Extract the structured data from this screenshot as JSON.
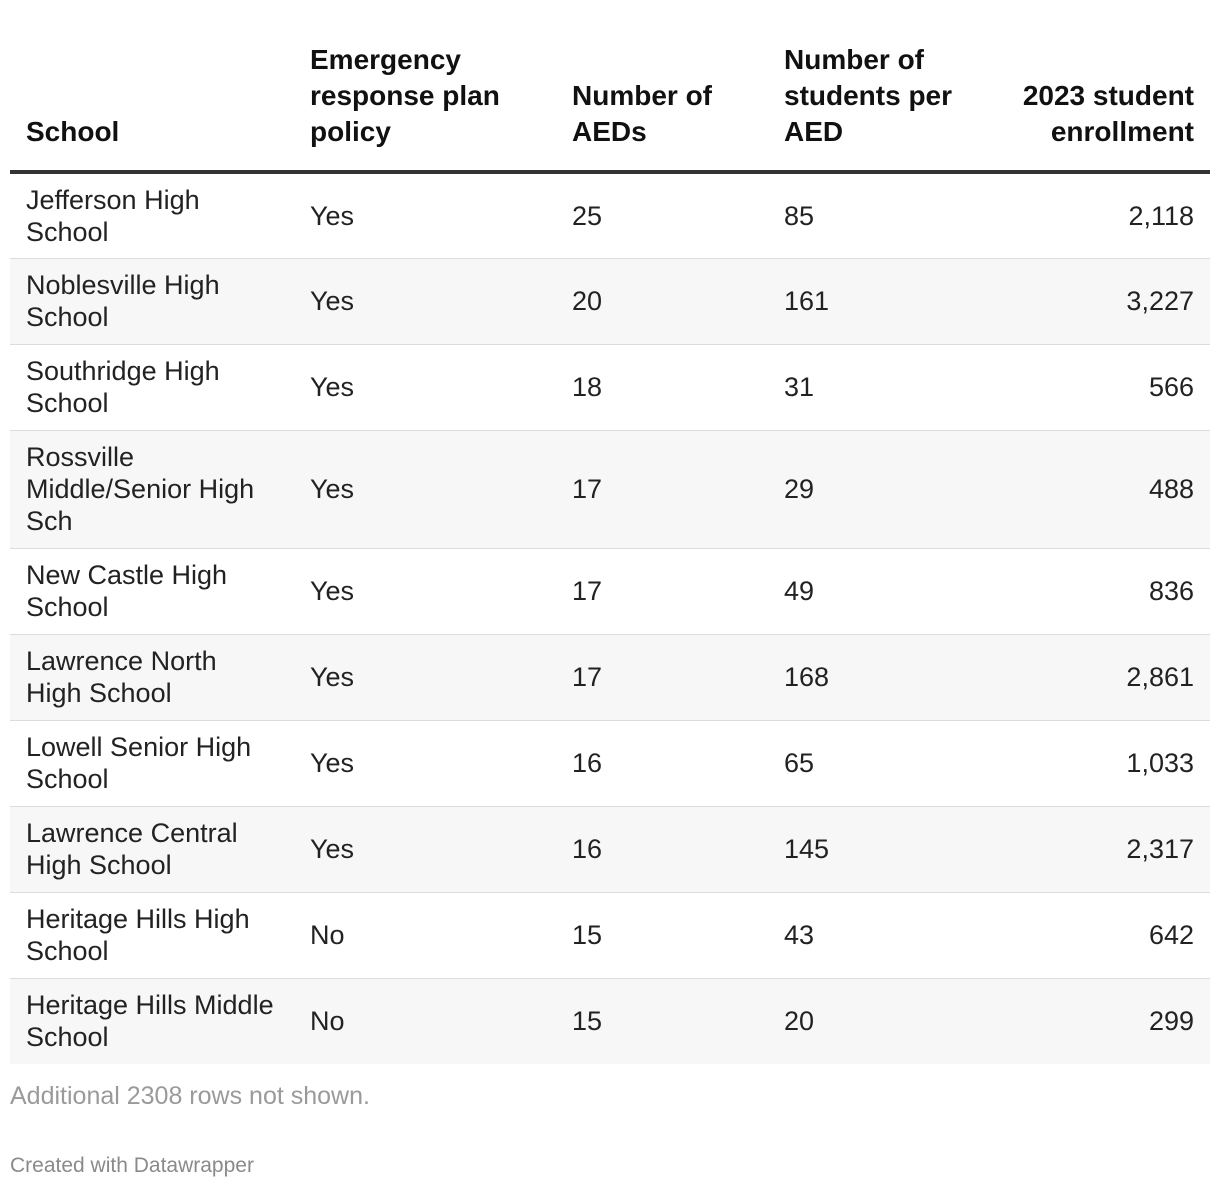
{
  "chart_data": {
    "type": "table",
    "columns": [
      "School",
      "Emergency response plan policy",
      "Number of AEDs",
      "Number of students per AED",
      "2023 student enrollment"
    ],
    "rows": [
      [
        "Jefferson High School",
        "Yes",
        "25",
        "85",
        "2,118"
      ],
      [
        "Noblesville High School",
        "Yes",
        "20",
        "161",
        "3,227"
      ],
      [
        "Southridge High School",
        "Yes",
        "18",
        "31",
        "566"
      ],
      [
        "Rossville Middle/Senior High Sch",
        "Yes",
        "17",
        "29",
        "488"
      ],
      [
        "New Castle High School",
        "Yes",
        "17",
        "49",
        "836"
      ],
      [
        "Lawrence North High School",
        "Yes",
        "17",
        "168",
        "2,861"
      ],
      [
        "Lowell Senior High School",
        "Yes",
        "16",
        "65",
        "1,033"
      ],
      [
        "Lawrence Central High School",
        "Yes",
        "16",
        "145",
        "2,317"
      ],
      [
        "Heritage Hills High School",
        "No",
        "15",
        "43",
        "642"
      ],
      [
        "Heritage Hills Middle School",
        "No",
        "15",
        "20",
        "299"
      ]
    ]
  },
  "footer": {
    "note": "Additional 2308 rows not shown.",
    "credit": "Created with Datawrapper"
  }
}
